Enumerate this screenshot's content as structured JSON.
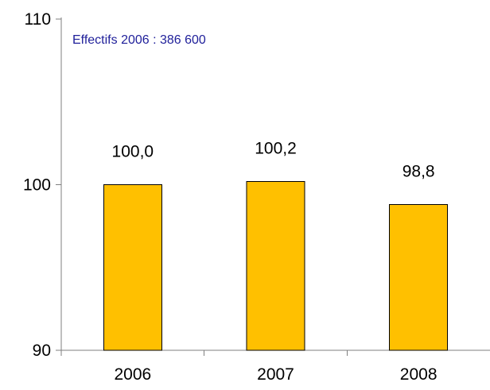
{
  "chart_data": {
    "type": "bar",
    "title": "",
    "xlabel": "",
    "ylabel": "",
    "categories": [
      "2006",
      "2007",
      "2008"
    ],
    "values": [
      100.0,
      100.2,
      98.8
    ],
    "value_labels": [
      "100,0",
      "100,2",
      "98,8"
    ],
    "ylim": [
      90,
      110
    ],
    "yticks": [
      "90",
      "100",
      "110"
    ],
    "grid": false,
    "legend": "none",
    "annotation": "Effectifs 2006 : 386 600",
    "colors": {
      "bar": "#FFC000",
      "bar_border": "#000000",
      "axis": "#7F7F7F",
      "annotation": "#1F1F9A",
      "text": "#000000"
    }
  }
}
